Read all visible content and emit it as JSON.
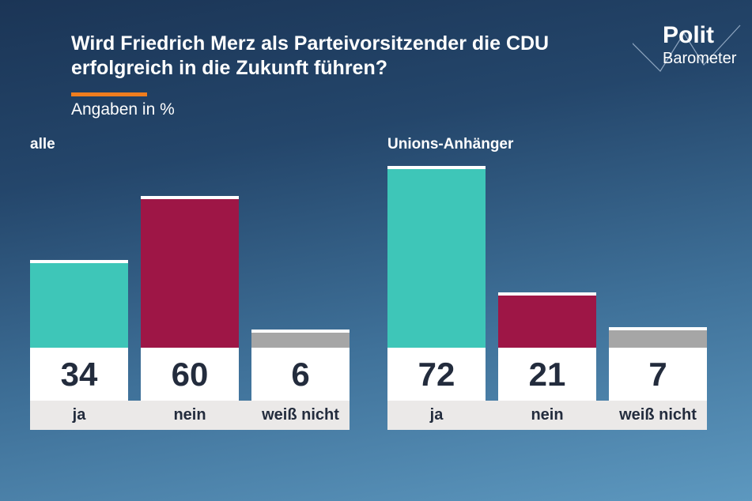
{
  "logo": {
    "line1": "Polit",
    "line2": "Barometer"
  },
  "chart_data": [
    {
      "type": "bar",
      "title": "Wird Friedrich Merz als Parteivorsitzender die CDU erfolgreich in die Zukunft führen?",
      "subtitle": "Angaben in %",
      "panel": "alle",
      "categories": [
        "ja",
        "nein",
        "weiß nicht"
      ],
      "values": [
        34,
        60,
        6
      ],
      "colors": [
        "#3ec6b8",
        "#9e1646",
        "#a6a6a6"
      ],
      "ylim": [
        0,
        100
      ]
    },
    {
      "type": "bar",
      "panel": "Unions-Anhänger",
      "categories": [
        "ja",
        "nein",
        "weiß nicht"
      ],
      "values": [
        72,
        21,
        7
      ],
      "colors": [
        "#3ec6b8",
        "#9e1646",
        "#a6a6a6"
      ],
      "ylim": [
        0,
        100
      ]
    }
  ]
}
